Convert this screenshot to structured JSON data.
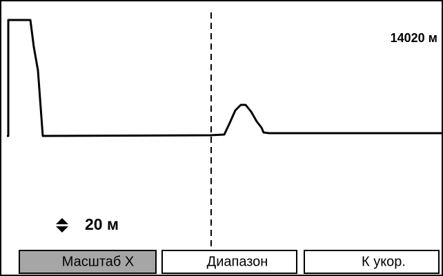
{
  "screen": {
    "distance_label": "14020 м",
    "scale_label": "20 м",
    "buttons": [
      "Масштаб X",
      "Диапазон",
      "К укор."
    ]
  }
}
